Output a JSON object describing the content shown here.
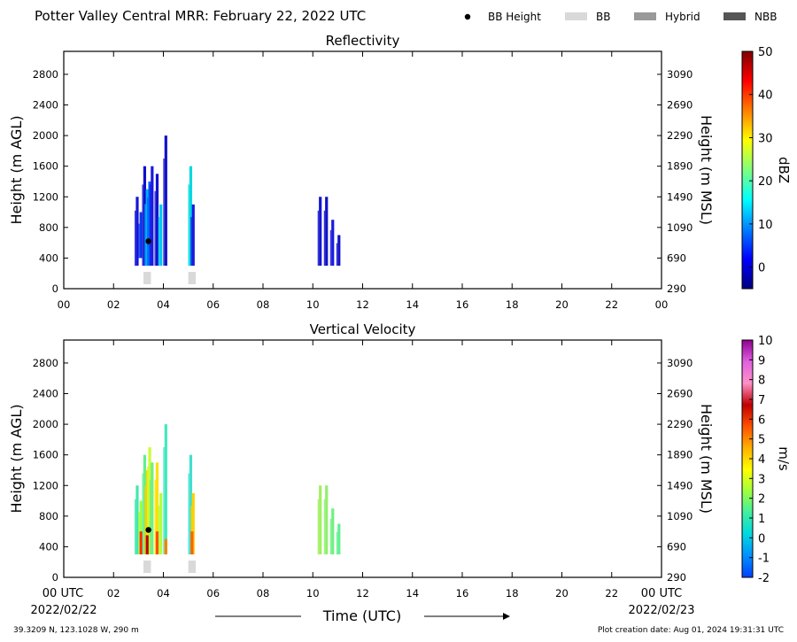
{
  "header": {
    "title": "Potter Valley Central MRR:  February 22, 2022 UTC",
    "legend": [
      {
        "label": "BB Height",
        "kind": "dot",
        "color": "#000000"
      },
      {
        "label": "BB",
        "kind": "box",
        "color": "#d9d9d9"
      },
      {
        "label": "Hybrid",
        "kind": "box",
        "color": "#999999"
      },
      {
        "label": "NBB",
        "kind": "box",
        "color": "#555555"
      }
    ]
  },
  "footer": {
    "location": "39.3209 N, 123.1028 W, 290 m",
    "created": "Plot creation date: Aug 01, 2024 19:31:31 UTC",
    "time_label": "Time (UTC)",
    "start_tick": "00 UTC",
    "start_date": "2022/02/22",
    "end_tick": "00 UTC",
    "end_date": "2022/02/23"
  },
  "chart_data": [
    {
      "type": "heatmap",
      "title": "Reflectivity",
      "ylabel": "Height (m AGL)",
      "ylabel_right": "Height (m MSL)",
      "xlim": [
        0,
        24
      ],
      "ylim": [
        0,
        3100
      ],
      "x_ticks": [
        "00",
        "02",
        "04",
        "06",
        "08",
        "10",
        "12",
        "14",
        "16",
        "18",
        "20",
        "22",
        "00"
      ],
      "y_ticks": [
        0,
        400,
        800,
        1200,
        1600,
        2000,
        2400,
        2800
      ],
      "y_ticks_right": [
        290,
        690,
        1090,
        1490,
        1890,
        2290,
        2690,
        3090
      ],
      "colorbar": {
        "label": "dBZ",
        "range": [
          -5,
          50
        ],
        "ticks": [
          0,
          10,
          20,
          30,
          40,
          50
        ],
        "colors": [
          "#00007f",
          "#0000ff",
          "#007fff",
          "#00ffff",
          "#7fff7f",
          "#ffff00",
          "#ff7f00",
          "#ff0000",
          "#7f0000"
        ]
      },
      "columns": [
        {
          "x": 2.95,
          "bottom": 300,
          "top": 1200,
          "color": "#1515d8"
        },
        {
          "x": 3.1,
          "bottom": 400,
          "top": 1000,
          "color": "#0a3cf0"
        },
        {
          "x": 3.25,
          "bottom": 300,
          "top": 1600,
          "color": "#1010c8"
        },
        {
          "x": 3.35,
          "bottom": 300,
          "top": 1300,
          "color": "#00b0ff"
        },
        {
          "x": 3.45,
          "bottom": 300,
          "top": 1400,
          "color": "#0064ff"
        },
        {
          "x": 3.55,
          "bottom": 300,
          "top": 1600,
          "color": "#1a1ae0"
        },
        {
          "x": 3.75,
          "bottom": 300,
          "top": 1500,
          "color": "#1010d0"
        },
        {
          "x": 3.9,
          "bottom": 300,
          "top": 1100,
          "color": "#00c8f0"
        },
        {
          "x": 4.1,
          "bottom": 300,
          "top": 2000,
          "color": "#1212c8"
        },
        {
          "x": 5.1,
          "bottom": 300,
          "top": 1600,
          "color": "#00d8e0"
        },
        {
          "x": 5.2,
          "bottom": 300,
          "top": 1100,
          "color": "#1a1ae0"
        },
        {
          "x": 10.3,
          "bottom": 300,
          "top": 1200,
          "color": "#1515d0"
        },
        {
          "x": 10.55,
          "bottom": 300,
          "top": 1200,
          "color": "#1010c8"
        },
        {
          "x": 10.8,
          "bottom": 300,
          "top": 900,
          "color": "#1a1ae0"
        },
        {
          "x": 11.05,
          "bottom": 300,
          "top": 700,
          "color": "#1212c8"
        }
      ],
      "bb_height": [
        {
          "x": 3.4,
          "y": 620
        }
      ],
      "bb_type": [
        {
          "x0": 3.2,
          "x1": 3.5,
          "type": "BB"
        },
        {
          "x0": 5.0,
          "x1": 5.3,
          "type": "BB"
        }
      ]
    },
    {
      "type": "heatmap",
      "title": "Vertical Velocity",
      "ylabel": "Height (m AGL)",
      "ylabel_right": "Height (m MSL)",
      "xlim": [
        0,
        24
      ],
      "ylim": [
        0,
        3100
      ],
      "x_ticks": [
        "",
        "02",
        "04",
        "06",
        "08",
        "10",
        "12",
        "14",
        "16",
        "18",
        "20",
        "22",
        ""
      ],
      "y_ticks": [
        0,
        400,
        800,
        1200,
        1600,
        2000,
        2400,
        2800
      ],
      "y_ticks_right": [
        290,
        690,
        1090,
        1490,
        1890,
        2290,
        2690,
        3090
      ],
      "colorbar": {
        "label": "m/s",
        "range": [
          -2,
          10
        ],
        "ticks": [
          -2,
          -1,
          0,
          1,
          2,
          3,
          4,
          5,
          6,
          7,
          8,
          9,
          10
        ],
        "colors": [
          "#0040ff",
          "#0090ff",
          "#00d8e0",
          "#40f0a0",
          "#a0ff40",
          "#ffff00",
          "#ffb000",
          "#ff5000",
          "#c00000",
          "#ff90c8",
          "#e060e0",
          "#900090"
        ]
      },
      "columns": [
        {
          "x": 2.95,
          "bottom": 300,
          "top": 1200,
          "color": "#40e8b0"
        },
        {
          "x": 3.1,
          "bottom": 300,
          "top": 1000,
          "color": "#a0ff40"
        },
        {
          "x": 3.25,
          "bottom": 300,
          "top": 1600,
          "color": "#60f090"
        },
        {
          "x": 3.35,
          "bottom": 300,
          "top": 1400,
          "color": "#ffd000"
        },
        {
          "x": 3.45,
          "bottom": 300,
          "top": 1700,
          "color": "#c8ff30"
        },
        {
          "x": 3.55,
          "bottom": 300,
          "top": 1500,
          "color": "#70f080"
        },
        {
          "x": 3.75,
          "bottom": 300,
          "top": 1500,
          "color": "#ffe000"
        },
        {
          "x": 3.9,
          "bottom": 300,
          "top": 1100,
          "color": "#b0ff40"
        },
        {
          "x": 4.1,
          "bottom": 300,
          "top": 2000,
          "color": "#40e8c0"
        },
        {
          "x": 5.1,
          "bottom": 300,
          "top": 1600,
          "color": "#40e0d0"
        },
        {
          "x": 5.2,
          "bottom": 300,
          "top": 1100,
          "color": "#ffd000"
        },
        {
          "x": 10.3,
          "bottom": 300,
          "top": 1200,
          "color": "#a0f060"
        },
        {
          "x": 10.55,
          "bottom": 300,
          "top": 1200,
          "color": "#90f070"
        },
        {
          "x": 10.8,
          "bottom": 300,
          "top": 900,
          "color": "#70f080"
        },
        {
          "x": 11.05,
          "bottom": 300,
          "top": 700,
          "color": "#60f090"
        }
      ],
      "hot_cores": [
        {
          "x": 3.1,
          "bottom": 300,
          "top": 600,
          "color": "#ff3000"
        },
        {
          "x": 3.35,
          "bottom": 300,
          "top": 550,
          "color": "#c00000"
        },
        {
          "x": 3.75,
          "bottom": 300,
          "top": 600,
          "color": "#ff5000"
        },
        {
          "x": 4.1,
          "bottom": 300,
          "top": 500,
          "color": "#ff8000"
        },
        {
          "x": 5.15,
          "bottom": 300,
          "top": 600,
          "color": "#ff6000"
        }
      ],
      "bb_height": [
        {
          "x": 3.4,
          "y": 620
        }
      ],
      "bb_type": [
        {
          "x0": 3.2,
          "x1": 3.5,
          "type": "BB"
        },
        {
          "x0": 5.0,
          "x1": 5.3,
          "type": "BB"
        }
      ]
    }
  ]
}
